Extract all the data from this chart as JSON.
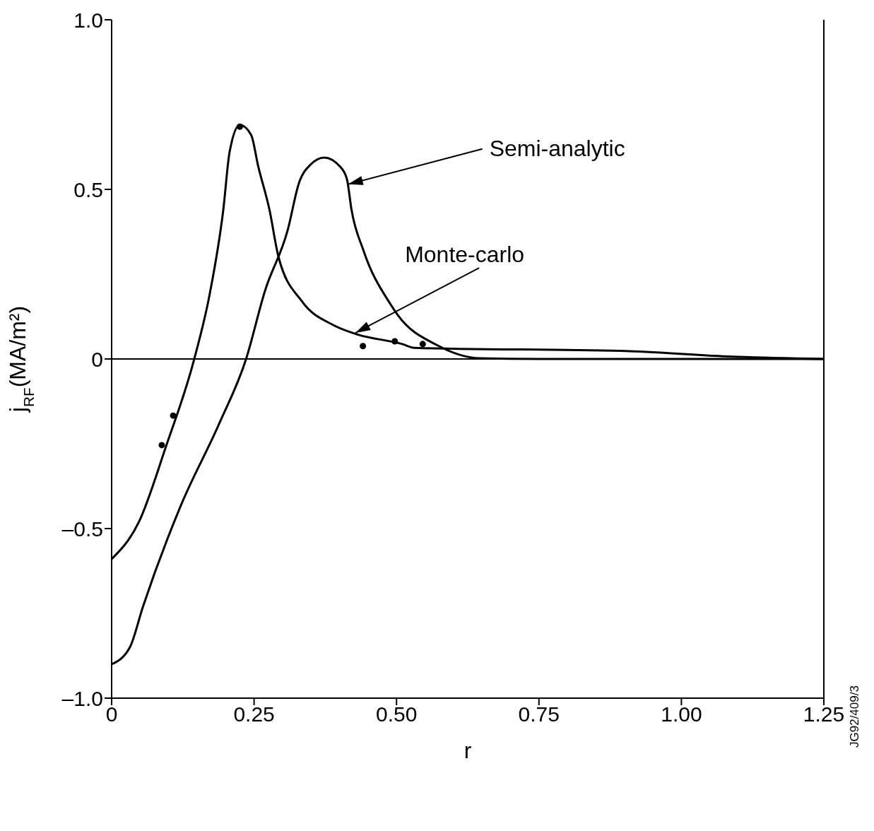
{
  "chart_data": {
    "type": "line",
    "xlabel": "r",
    "ylabel": "j$_{RF}$(MA/m²)",
    "xlim": [
      0,
      1.25
    ],
    "ylim": [
      -1.0,
      1.0
    ],
    "xticks": [
      0,
      0.25,
      {
        "value": 0.5,
        "label": "0.50"
      },
      0.75,
      {
        "value": 1,
        "label": "1.00"
      },
      1.25
    ],
    "yticks": [
      {
        "value": -1,
        "label": "–1.0"
      },
      {
        "value": -0.5,
        "label": "–0.5"
      },
      0,
      {
        "value": 0.5,
        "label": "0.5"
      },
      {
        "value": 1,
        "label": "1.0"
      }
    ],
    "series": [
      {
        "type": "line",
        "color": "#000000",
        "marker": "none",
        "line_style": "solid",
        "x": [
          0,
          0.048,
          0.095,
          0.145,
          0.172,
          0.196,
          0.207,
          0.225,
          0.245,
          0.257,
          0.277,
          0.293,
          0.334,
          0.389,
          0.43,
          0.51,
          0.531,
          0.909,
          1.1,
          1.25
        ],
        "values": [
          -0.59,
          -0.48,
          -0.26,
          0,
          0.19,
          0.44,
          0.61,
          0.69,
          0.66,
          0.57,
          0.44,
          0.3,
          0.17,
          0.1,
          0.073,
          0.044,
          0.033,
          0.023,
          0.006,
          0
        ]
      },
      {
        "type": "line",
        "color": "#000000",
        "marker": "none",
        "line_style": "solid",
        "x": [
          0,
          0.032,
          0.055,
          0.122,
          0.189,
          0.236,
          0.269,
          0.309,
          0.329,
          0.349,
          0.373,
          0.401,
          0.413,
          0.421,
          0.442,
          0.49,
          0.502,
          0.572,
          0.647,
          0.75,
          1.25
        ],
        "values": [
          -0.9,
          -0.85,
          -0.73,
          -0.43,
          -0.19,
          0,
          0.2,
          0.38,
          0.52,
          0.573,
          0.594,
          0.567,
          0.53,
          0.44,
          0.32,
          0.16,
          0.13,
          0.04,
          0.002,
          0,
          0
        ]
      },
      {
        "type": "scatter",
        "color": "#000000",
        "marker": "circle",
        "x": [
          0.088,
          0.108,
          0.225,
          0.441,
          0.497,
          0.546
        ],
        "values": [
          -0.254,
          -0.167,
          0.685,
          0.038,
          0.052,
          0.044
        ]
      }
    ],
    "ref_lines": [
      {
        "axis": "y",
        "value": 0,
        "color": "#000000"
      }
    ],
    "annotations": [
      {
        "text": "Semi-analytic",
        "x": 0.415,
        "y": 0.515
      },
      {
        "text": "Monte-carlo",
        "x": 0.428,
        "y": 0.077
      },
      "JG92/409/3"
    ]
  }
}
